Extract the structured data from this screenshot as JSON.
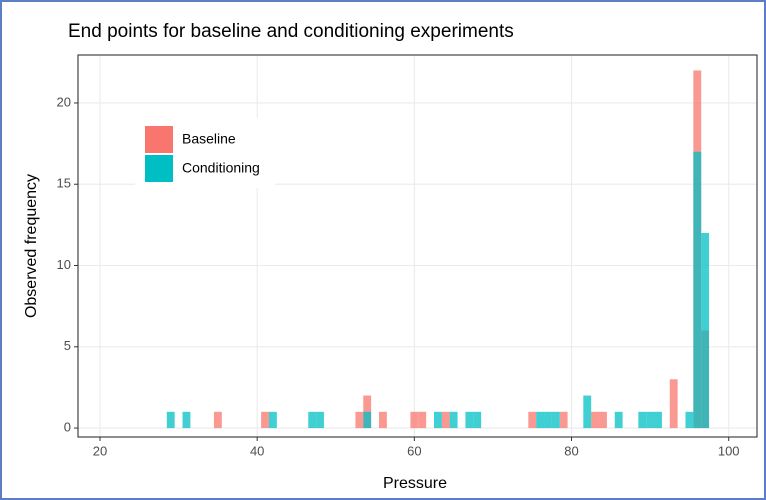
{
  "chart_data": {
    "type": "histogram",
    "title": "End points for baseline and conditioning experiments",
    "x_label": "Pressure",
    "y_label": "Observed frequency",
    "bins": [
      28.5,
      29.5,
      30.5,
      31.5,
      32.5,
      33.5,
      34.5,
      35.5,
      36.5,
      37.5,
      38.5,
      39.5,
      40.5,
      41.5,
      42.5,
      43.5,
      44.5,
      45.5,
      46.5,
      47.5,
      48.5,
      49.5,
      50.5,
      51.5,
      52.5,
      53.5,
      54.5,
      55.5,
      56.5,
      57.5,
      58.5,
      59.5,
      60.5,
      61.5,
      62.5,
      63.5,
      64.5,
      65.5,
      66.5,
      67.5,
      68.5,
      69.5,
      70.5,
      71.5,
      72.5,
      73.5,
      74.5,
      75.5,
      76.5,
      77.5,
      78.5,
      79.5,
      80.5,
      81.5,
      82.5,
      83.5,
      84.5,
      85.5,
      86.5,
      87.5,
      88.5,
      89.5,
      90.5,
      91.5,
      92.5,
      93.5,
      94.5,
      95.5,
      96.5,
      97.5
    ],
    "series": [
      {
        "name": "Baseline",
        "color": "#F8766D",
        "values": [
          0,
          0,
          0,
          0,
          0,
          0,
          1,
          0,
          0,
          0,
          0,
          0,
          1,
          0,
          0,
          0,
          0,
          0,
          0,
          0,
          0,
          0,
          0,
          0,
          1,
          2,
          0,
          1,
          0,
          0,
          0,
          1,
          1,
          0,
          0,
          1,
          0,
          0,
          0,
          0,
          0,
          0,
          0,
          0,
          0,
          0,
          1,
          0,
          0,
          0,
          1,
          0,
          0,
          0,
          1,
          1,
          0,
          0,
          0,
          0,
          0,
          0,
          0,
          0,
          3,
          0,
          0,
          22,
          6
        ]
      },
      {
        "name": "Conditioning",
        "color": "#00BFC4",
        "values": [
          1,
          0,
          1,
          0,
          0,
          0,
          0,
          0,
          0,
          0,
          0,
          0,
          0,
          1,
          0,
          0,
          0,
          0,
          1,
          1,
          0,
          0,
          0,
          0,
          0,
          1,
          0,
          0,
          0,
          0,
          0,
          0,
          0,
          0,
          1,
          0,
          1,
          0,
          1,
          1,
          0,
          0,
          0,
          0,
          0,
          0,
          0,
          1,
          1,
          1,
          0,
          0,
          0,
          2,
          0,
          0,
          0,
          1,
          0,
          0,
          1,
          1,
          1,
          0,
          0,
          0,
          1,
          17,
          12
        ]
      }
    ],
    "xlim": [
      17.2,
      103.6
    ],
    "ylim": [
      -0.55,
      22.95
    ],
    "xticks": [
      20,
      40,
      60,
      80,
      100
    ],
    "yticks": [
      0,
      5,
      10,
      15,
      20
    ],
    "grid": true,
    "legend_position": "top-left"
  }
}
